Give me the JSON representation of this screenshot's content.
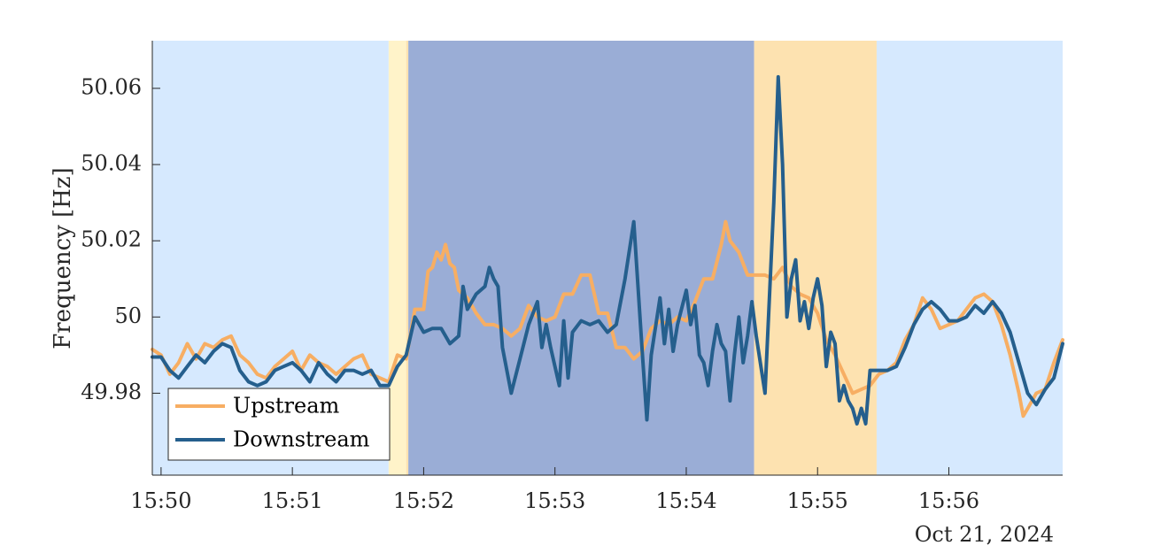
{
  "chart_data": {
    "type": "line",
    "ylabel": "Frequency [Hz]",
    "x_unit": "time (clock)",
    "date_label": "Oct 21, 2024",
    "xlim": [
      "15:49:56",
      "15:56:52"
    ],
    "ylim": [
      49.9585,
      50.0725
    ],
    "xticks": [
      {
        "t": "15:50:00",
        "label": "15:50"
      },
      {
        "t": "15:51:00",
        "label": "15:51"
      },
      {
        "t": "15:52:00",
        "label": "15:52"
      },
      {
        "t": "15:53:00",
        "label": "15:53"
      },
      {
        "t": "15:54:00",
        "label": "15:54"
      },
      {
        "t": "15:55:00",
        "label": "15:55"
      },
      {
        "t": "15:56:00",
        "label": "15:56"
      }
    ],
    "yticks": [
      {
        "v": 49.98,
        "label": "49.98"
      },
      {
        "v": 50.0,
        "label": "50"
      },
      {
        "v": 50.02,
        "label": "50.02"
      },
      {
        "v": 50.04,
        "label": "50.04"
      },
      {
        "v": 50.06,
        "label": "50.06"
      }
    ],
    "grid": false,
    "legend": {
      "position": "bottom-left",
      "entries": [
        "Upstream",
        "Downstream"
      ]
    },
    "regions": [
      {
        "start": "15:49:56",
        "end": "15:51:44",
        "color": "#d6e9fe"
      },
      {
        "start": "15:51:44",
        "end": "15:51:52",
        "color": "#fff3c9"
      },
      {
        "start": "15:51:52",
        "end": "15:51:53",
        "color": "#fde2b0"
      },
      {
        "start": "15:51:53",
        "end": "15:54:31",
        "color": "#9aadd6"
      },
      {
        "start": "15:54:31",
        "end": "15:55:27",
        "color": "#fde2b0"
      },
      {
        "start": "15:55:27",
        "end": "15:56:52",
        "color": "#d6e9fe"
      }
    ],
    "series": [
      {
        "name": "Upstream",
        "color": "#f7ae63",
        "points": [
          [
            "15:49:56",
            49.9915
          ],
          [
            "15:50:00",
            49.99
          ],
          [
            "15:50:04",
            49.985
          ],
          [
            "15:50:08",
            49.988
          ],
          [
            "15:50:12",
            49.993
          ],
          [
            "15:50:16",
            49.989
          ],
          [
            "15:50:20",
            49.993
          ],
          [
            "15:50:24",
            49.992
          ],
          [
            "15:50:28",
            49.994
          ],
          [
            "15:50:32",
            49.995
          ],
          [
            "15:50:36",
            49.99
          ],
          [
            "15:50:40",
            49.988
          ],
          [
            "15:50:44",
            49.985
          ],
          [
            "15:50:48",
            49.984
          ],
          [
            "15:50:52",
            49.987
          ],
          [
            "15:50:56",
            49.989
          ],
          [
            "15:51:00",
            49.991
          ],
          [
            "15:51:04",
            49.986
          ],
          [
            "15:51:08",
            49.99
          ],
          [
            "15:51:12",
            49.988
          ],
          [
            "15:51:16",
            49.987
          ],
          [
            "15:51:20",
            49.985
          ],
          [
            "15:51:24",
            49.987
          ],
          [
            "15:51:28",
            49.989
          ],
          [
            "15:51:32",
            49.99
          ],
          [
            "15:51:36",
            49.985
          ],
          [
            "15:51:44",
            49.983
          ],
          [
            "15:51:48",
            49.99
          ],
          [
            "15:51:52",
            49.989
          ],
          [
            "15:51:56",
            50.002
          ],
          [
            "15:52:00",
            50.002
          ],
          [
            "15:52:02",
            50.012
          ],
          [
            "15:52:04",
            50.013
          ],
          [
            "15:52:06",
            50.017
          ],
          [
            "15:52:08",
            50.015
          ],
          [
            "15:52:10",
            50.019
          ],
          [
            "15:52:12",
            50.014
          ],
          [
            "15:52:14",
            50.013
          ],
          [
            "15:52:16",
            50.007
          ],
          [
            "15:52:20",
            50.005
          ],
          [
            "15:52:24",
            50.001
          ],
          [
            "15:52:28",
            49.998
          ],
          [
            "15:52:32",
            49.998
          ],
          [
            "15:52:36",
            49.997
          ],
          [
            "15:52:40",
            49.995
          ],
          [
            "15:52:44",
            49.997
          ],
          [
            "15:52:48",
            50.003
          ],
          [
            "15:52:52",
            50.0
          ],
          [
            "15:52:56",
            49.999
          ],
          [
            "15:53:00",
            50.0
          ],
          [
            "15:53:04",
            50.006
          ],
          [
            "15:53:08",
            50.006
          ],
          [
            "15:53:12",
            50.011
          ],
          [
            "15:53:16",
            50.011
          ],
          [
            "15:53:20",
            50.001
          ],
          [
            "15:53:24",
            50.001
          ],
          [
            "15:53:28",
            49.992
          ],
          [
            "15:53:32",
            49.992
          ],
          [
            "15:53:36",
            49.989
          ],
          [
            "15:53:40",
            49.991
          ],
          [
            "15:53:44",
            49.997
          ],
          [
            "15:53:48",
            49.999
          ],
          [
            "15:53:52",
            49.998
          ],
          [
            "15:53:56",
            50.0
          ],
          [
            "15:54:00",
            49.999
          ],
          [
            "15:54:04",
            50.004
          ],
          [
            "15:54:08",
            50.01
          ],
          [
            "15:54:12",
            50.01
          ],
          [
            "15:54:16",
            50.019
          ],
          [
            "15:54:18",
            50.025
          ],
          [
            "15:54:20",
            50.02
          ],
          [
            "15:54:24",
            50.017
          ],
          [
            "15:54:28",
            50.011
          ],
          [
            "15:54:32",
            50.011
          ],
          [
            "15:54:36",
            50.011
          ],
          [
            "15:54:40",
            50.01
          ],
          [
            "15:54:44",
            50.013
          ],
          [
            "15:54:48",
            50.008
          ],
          [
            "15:54:52",
            50.006
          ],
          [
            "15:54:56",
            50.005
          ],
          [
            "15:55:00",
            50.001
          ],
          [
            "15:55:04",
            49.994
          ],
          [
            "15:55:08",
            49.99
          ],
          [
            "15:55:12",
            49.985
          ],
          [
            "15:55:16",
            49.98
          ],
          [
            "15:55:20",
            49.981
          ],
          [
            "15:55:24",
            49.982
          ],
          [
            "15:55:28",
            49.985
          ],
          [
            "15:55:32",
            49.986
          ],
          [
            "15:55:36",
            49.988
          ],
          [
            "15:55:40",
            49.994
          ],
          [
            "15:55:44",
            49.998
          ],
          [
            "15:55:48",
            50.005
          ],
          [
            "15:55:52",
            50.002
          ],
          [
            "15:55:56",
            49.997
          ],
          [
            "15:56:00",
            49.998
          ],
          [
            "15:56:04",
            49.999
          ],
          [
            "15:56:08",
            50.002
          ],
          [
            "15:56:12",
            50.005
          ],
          [
            "15:56:16",
            50.006
          ],
          [
            "15:56:20",
            50.004
          ],
          [
            "15:56:24",
            49.998
          ],
          [
            "15:56:28",
            49.99
          ],
          [
            "15:56:32",
            49.98
          ],
          [
            "15:56:34",
            49.974
          ],
          [
            "15:56:36",
            49.976
          ],
          [
            "15:56:40",
            49.98
          ],
          [
            "15:56:44",
            49.981
          ],
          [
            "15:56:48",
            49.988
          ],
          [
            "15:56:52",
            49.994
          ]
        ]
      },
      {
        "name": "Downstream",
        "color": "#255f8d",
        "points": [
          [
            "15:49:56",
            49.9895
          ],
          [
            "15:50:00",
            49.9895
          ],
          [
            "15:50:04",
            49.986
          ],
          [
            "15:50:08",
            49.984
          ],
          [
            "15:50:12",
            49.987
          ],
          [
            "15:50:16",
            49.99
          ],
          [
            "15:50:20",
            49.988
          ],
          [
            "15:50:24",
            49.991
          ],
          [
            "15:50:28",
            49.993
          ],
          [
            "15:50:32",
            49.992
          ],
          [
            "15:50:36",
            49.986
          ],
          [
            "15:50:40",
            49.983
          ],
          [
            "15:50:44",
            49.982
          ],
          [
            "15:50:48",
            49.983
          ],
          [
            "15:50:52",
            49.986
          ],
          [
            "15:50:56",
            49.987
          ],
          [
            "15:51:00",
            49.988
          ],
          [
            "15:51:04",
            49.986
          ],
          [
            "15:51:08",
            49.983
          ],
          [
            "15:51:12",
            49.988
          ],
          [
            "15:51:16",
            49.985
          ],
          [
            "15:51:20",
            49.983
          ],
          [
            "15:51:24",
            49.986
          ],
          [
            "15:51:28",
            49.986
          ],
          [
            "15:51:32",
            49.985
          ],
          [
            "15:51:36",
            49.986
          ],
          [
            "15:51:40",
            49.982
          ],
          [
            "15:51:44",
            49.982
          ],
          [
            "15:51:48",
            49.987
          ],
          [
            "15:51:52",
            49.99
          ],
          [
            "15:51:56",
            50.0
          ],
          [
            "15:52:00",
            49.996
          ],
          [
            "15:52:04",
            49.997
          ],
          [
            "15:52:08",
            49.997
          ],
          [
            "15:52:12",
            49.993
          ],
          [
            "15:52:16",
            49.995
          ],
          [
            "15:52:18",
            50.008
          ],
          [
            "15:52:20",
            50.002
          ],
          [
            "15:52:24",
            50.006
          ],
          [
            "15:52:28",
            50.008
          ],
          [
            "15:52:30",
            50.013
          ],
          [
            "15:52:32",
            50.01
          ],
          [
            "15:52:34",
            50.008
          ],
          [
            "15:52:36",
            49.992
          ],
          [
            "15:52:40",
            49.98
          ],
          [
            "15:52:44",
            49.989
          ],
          [
            "15:52:48",
            49.998
          ],
          [
            "15:52:52",
            50.004
          ],
          [
            "15:52:54",
            49.992
          ],
          [
            "15:52:56",
            49.998
          ],
          [
            "15:52:58",
            49.992
          ],
          [
            "15:53:02",
            49.982
          ],
          [
            "15:53:04",
            49.999
          ],
          [
            "15:53:06",
            49.984
          ],
          [
            "15:53:08",
            49.996
          ],
          [
            "15:53:12",
            49.999
          ],
          [
            "15:53:16",
            49.998
          ],
          [
            "15:53:20",
            49.999
          ],
          [
            "15:53:24",
            49.996
          ],
          [
            "15:53:28",
            49.998
          ],
          [
            "15:53:32",
            50.01
          ],
          [
            "15:53:36",
            50.025
          ],
          [
            "15:53:40",
            49.99
          ],
          [
            "15:53:42",
            49.973
          ],
          [
            "15:53:44",
            49.99
          ],
          [
            "15:53:48",
            50.005
          ],
          [
            "15:53:50",
            49.993
          ],
          [
            "15:53:52",
            50.002
          ],
          [
            "15:53:54",
            49.991
          ],
          [
            "15:53:56",
            49.998
          ],
          [
            "15:54:00",
            50.007
          ],
          [
            "15:54:02",
            49.998
          ],
          [
            "15:54:04",
            50.003
          ],
          [
            "15:54:06",
            49.99
          ],
          [
            "15:54:08",
            49.988
          ],
          [
            "15:54:10",
            49.982
          ],
          [
            "15:54:12",
            49.991
          ],
          [
            "15:54:14",
            49.998
          ],
          [
            "15:54:16",
            49.993
          ],
          [
            "15:54:18",
            49.991
          ],
          [
            "15:54:20",
            49.978
          ],
          [
            "15:54:22",
            49.99
          ],
          [
            "15:54:24",
            50.0
          ],
          [
            "15:54:26",
            49.988
          ],
          [
            "15:54:28",
            49.995
          ],
          [
            "15:54:30",
            50.004
          ],
          [
            "15:54:32",
            49.995
          ],
          [
            "15:54:36",
            49.98
          ],
          [
            "15:54:40",
            50.03
          ],
          [
            "15:54:42",
            50.063
          ],
          [
            "15:54:44",
            50.04
          ],
          [
            "15:54:46",
            50.0
          ],
          [
            "15:54:48",
            50.01
          ],
          [
            "15:54:50",
            50.015
          ],
          [
            "15:54:52",
            49.999
          ],
          [
            "15:54:54",
            50.004
          ],
          [
            "15:54:56",
            49.997
          ],
          [
            "15:54:58",
            50.005
          ],
          [
            "15:55:00",
            50.01
          ],
          [
            "15:55:02",
            50.003
          ],
          [
            "15:55:04",
            49.987
          ],
          [
            "15:55:06",
            49.996
          ],
          [
            "15:55:08",
            49.993
          ],
          [
            "15:55:10",
            49.978
          ],
          [
            "15:55:12",
            49.982
          ],
          [
            "15:55:14",
            49.978
          ],
          [
            "15:55:16",
            49.976
          ],
          [
            "15:55:18",
            49.972
          ],
          [
            "15:55:20",
            49.976
          ],
          [
            "15:55:22",
            49.972
          ],
          [
            "15:55:24",
            49.986
          ],
          [
            "15:55:28",
            49.986
          ],
          [
            "15:55:32",
            49.986
          ],
          [
            "15:55:36",
            49.987
          ],
          [
            "15:55:40",
            49.992
          ],
          [
            "15:55:44",
            49.998
          ],
          [
            "15:55:48",
            50.002
          ],
          [
            "15:55:52",
            50.004
          ],
          [
            "15:55:56",
            50.002
          ],
          [
            "15:56:00",
            49.999
          ],
          [
            "15:56:04",
            49.999
          ],
          [
            "15:56:08",
            50.0
          ],
          [
            "15:56:12",
            50.003
          ],
          [
            "15:56:16",
            50.001
          ],
          [
            "15:56:20",
            50.004
          ],
          [
            "15:56:24",
            50.001
          ],
          [
            "15:56:28",
            49.996
          ],
          [
            "15:56:32",
            49.988
          ],
          [
            "15:56:36",
            49.98
          ],
          [
            "15:56:40",
            49.977
          ],
          [
            "15:56:44",
            49.981
          ],
          [
            "15:56:48",
            49.984
          ],
          [
            "15:56:52",
            49.993
          ]
        ]
      }
    ]
  }
}
